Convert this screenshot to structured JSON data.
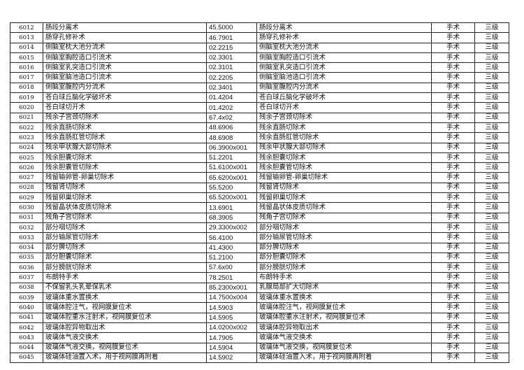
{
  "rows": [
    [
      "6012",
      "肠段分离术",
      "45.5000",
      "肠段分离术",
      "手术",
      "三级"
    ],
    [
      "6013",
      "肠穿孔修补术",
      "46.7901",
      "肠穿孔修补术",
      "手术",
      "三级"
    ],
    [
      "6014",
      "侧脑室枕大池分流术",
      "02.2215",
      "侧脑室枕大池分流术",
      "手术",
      "三级"
    ],
    [
      "6015",
      "侧脑室胸腔造口引流术",
      "02.3301",
      "侧脑室胸腔造口引流术",
      "手术",
      "三级"
    ],
    [
      "6016",
      "侧脑室乳突造口引流术",
      "02.3101",
      "侧脑室乳突造口引流术",
      "手术",
      "三级"
    ],
    [
      "6017",
      "侧脑室脑池造口引流术",
      "02.2205",
      "侧脑室脑池造口引流术",
      "手术",
      "三级"
    ],
    [
      "6018",
      "侧脑室腹腔内分流术",
      "02.3401",
      "侧脑室腹腔内分流术",
      "手术",
      "三级"
    ],
    [
      "6019",
      "苍白球丘脑化学破坏术",
      "01.4204",
      "苍白球丘脑化学破坏术",
      "手术",
      "三级"
    ],
    [
      "6020",
      "苍白球切开术",
      "01.4202",
      "苍白球切开术",
      "手术",
      "三级"
    ],
    [
      "6021",
      "残余子宫颈切除术",
      "67.4x02",
      "残余子宫颈切除术",
      "手术",
      "三级"
    ],
    [
      "6022",
      "残余直肠切除术",
      "48.6906",
      "残余直肠切除术",
      "手术",
      "三级"
    ],
    [
      "6023",
      "残余直肠肛管切除术",
      "48.6908",
      "残余直肠肛管切除术",
      "手术",
      "三级"
    ],
    [
      "6024",
      "残余甲状腺大部切除术",
      "06.3900x001",
      "残余甲状腺大部切除术",
      "手术",
      "三级"
    ],
    [
      "6025",
      "残余胆囊切除术",
      "51.2201",
      "残余胆囊切除术",
      "手术",
      "三级"
    ],
    [
      "6026",
      "残余胆囊管切除术",
      "51.6100x001",
      "残余胆囊管切除术",
      "手术",
      "三级"
    ],
    [
      "6027",
      "残留输卵管-卵巢切除术",
      "65.6200x001",
      "残留输卵管-卵巢切除术",
      "手术",
      "三级"
    ],
    [
      "6028",
      "残留肾切除术",
      "55.5200",
      "残留肾切除术",
      "手术",
      "三级"
    ],
    [
      "6029",
      "残留卵巢切除术",
      "65.5200x001",
      "残留卵巢切除术",
      "手术",
      "三级"
    ],
    [
      "6030",
      "残留晶状体皮质切除术",
      "13.6901",
      "残留晶状体皮质切除术",
      "手术",
      "三级"
    ],
    [
      "6031",
      "残角子宫切除术",
      "68.3905",
      "残角子宫切除术",
      "手术",
      "三级"
    ],
    [
      "6032",
      "部分咽切除术",
      "29.3300x002",
      "部分咽切除术",
      "手术",
      "三级"
    ],
    [
      "6033",
      "部分输尿管切除术",
      "56.4100",
      "部分输尿管切除术",
      "手术",
      "三级"
    ],
    [
      "6034",
      "部分脾切除术",
      "41.4300",
      "部分脾切除术",
      "手术",
      "三级"
    ],
    [
      "6035",
      "部分胆囊切除术",
      "51.2100",
      "部分胆囊切除术",
      "手术",
      "三级"
    ],
    [
      "6036",
      "部分膀胱切除术",
      "57.6x00",
      "部分膀胱切除术",
      "手术",
      "三级"
    ],
    [
      "6037",
      "布朗特手术",
      "78.2501",
      "布朗特手术",
      "手术",
      "三级"
    ],
    [
      "6038",
      "不保留乳头乳晕保乳术",
      "85.2300x001",
      "乳腺局部扩大切除术",
      "手术",
      "三级"
    ],
    [
      "6039",
      "玻璃体重水置换术",
      "14.7500x004",
      "玻璃体重水置换术",
      "手术",
      "三级"
    ],
    [
      "6040",
      "玻璃体腔注气，视网膜复位术",
      "14.5903",
      "玻璃体腔注气，视网膜复位术",
      "手术",
      "三级"
    ],
    [
      "6041",
      "玻璃体腔重水注射术，视网膜复位术",
      "14.5905",
      "玻璃体腔重水注射术，视网膜复位术",
      "手术",
      "三级"
    ],
    [
      "6042",
      "玻璃体腔异物取出术",
      "14.0200x002",
      "玻璃体腔异物取出术",
      "手术",
      "三级"
    ],
    [
      "6043",
      "玻璃体气液交换术",
      "14.7905",
      "玻璃体气液交换术",
      "手术",
      "三级"
    ],
    [
      "6044",
      "玻璃体气液交换，视网膜复位术",
      "14.5904",
      "玻璃体气液交换，视网膜复位术",
      "手术",
      "三级"
    ],
    [
      "6045",
      "玻璃体硅油置入术，用于视网膜再附着",
      "14.5902",
      "玻璃体硅油置入术，用于视网膜再附着",
      "手术",
      "三级"
    ]
  ]
}
